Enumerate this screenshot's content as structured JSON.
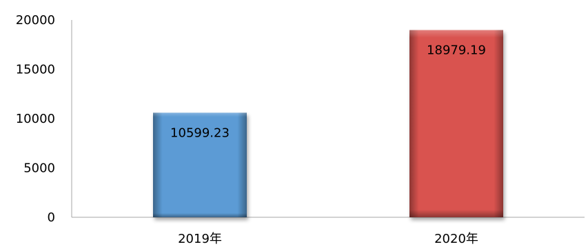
{
  "chart_data": {
    "type": "bar",
    "categories": [
      "2019年",
      "2020年"
    ],
    "values": [
      10599.23,
      18979.19
    ],
    "data_labels": [
      "10599.23",
      "18979.19"
    ],
    "title": "",
    "xlabel": "",
    "ylabel": "",
    "ylim": [
      0,
      20000
    ],
    "y_ticks": [
      0,
      5000,
      10000,
      15000,
      20000
    ],
    "y_tick_labels": [
      "0",
      "5000",
      "10000",
      "15000",
      "20000"
    ],
    "grid": false,
    "legend": "none",
    "bar_colors": [
      "#5b9bd5",
      "#d9534f"
    ],
    "axis_color": "#a6a6a6"
  }
}
